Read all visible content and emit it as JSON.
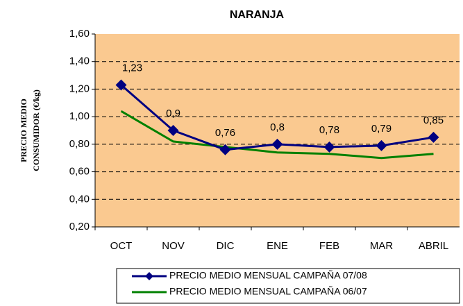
{
  "chart_data": {
    "type": "line",
    "title": "NARANJA",
    "y_label": [
      "PRECIO MEDIO",
      "CONSUMIDOR (€/kg)"
    ],
    "categories": [
      "OCT",
      "NOV",
      "DIC",
      "ENE",
      "FEB",
      "MAR",
      "ABRIL"
    ],
    "series": [
      {
        "name": "PRECIO MEDIO MENSUAL CAMPAÑA 07/08",
        "color": "#000080",
        "marker": "diamond",
        "values": [
          1.23,
          0.9,
          0.76,
          0.8,
          0.78,
          0.79,
          0.85
        ],
        "value_labels": [
          "1,23",
          "0,9",
          "0,76",
          "0,8",
          "0,78",
          "0,79",
          "0,85"
        ]
      },
      {
        "name": "PRECIO MEDIO MENSUAL CAMPAÑA 06/07",
        "color": "#008000",
        "values": [
          1.04,
          0.82,
          0.78,
          0.74,
          0.73,
          0.7,
          0.73
        ]
      }
    ],
    "ylim": [
      0.2,
      1.6
    ],
    "yticks": [
      {
        "value": 0.2,
        "label": "0,20"
      },
      {
        "value": 0.4,
        "label": "0,40"
      },
      {
        "value": 0.6,
        "label": "0,60"
      },
      {
        "value": 0.8,
        "label": "0,80"
      },
      {
        "value": 1.0,
        "label": "1,00"
      },
      {
        "value": 1.2,
        "label": "1,20"
      },
      {
        "value": 1.4,
        "label": "1,40"
      },
      {
        "value": 1.6,
        "label": "1,60"
      }
    ],
    "grid": true,
    "plot_background": "#FAC990",
    "legend": "bottom"
  }
}
